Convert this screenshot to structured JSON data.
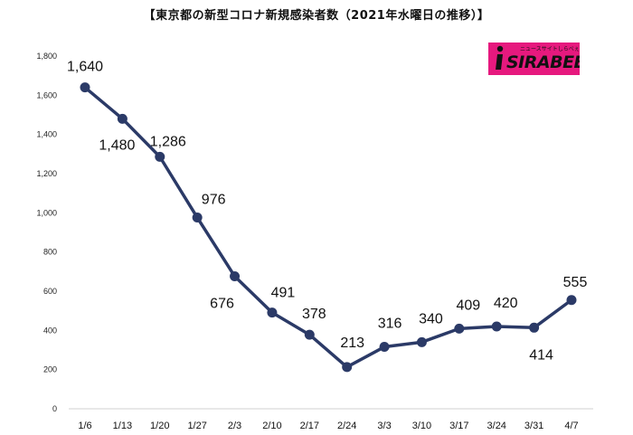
{
  "title": "【東京都の新型コロナ新規感染者数（2021年水曜日の推移）】",
  "logo": {
    "text": "SIRABEE",
    "subtext": "ニュースサイトしらべぇ"
  },
  "colors": {
    "line": "#2b3a67",
    "marker": "#2b3a67",
    "grid": "#e2e2e2",
    "logo_bg": "#e6197e"
  },
  "chart_data": {
    "type": "line",
    "title": "【東京都の新型コロナ新規感染者数（2021年水曜日の推移）】",
    "xlabel": "",
    "ylabel": "",
    "categories": [
      "1/6",
      "1/13",
      "1/20",
      "1/27",
      "2/3",
      "2/10",
      "2/17",
      "2/24",
      "3/3",
      "3/10",
      "3/17",
      "3/24",
      "3/31",
      "4/7"
    ],
    "series": [
      {
        "values": [
          1640,
          1480,
          1286,
          976,
          676,
          491,
          378,
          213,
          316,
          340,
          409,
          420,
          414,
          555
        ]
      }
    ],
    "data_labels": [
      "1,640",
      "1,480",
      "1,286",
      "976",
      "676",
      "491",
      "378",
      "213",
      "316",
      "340",
      "409",
      "420",
      "414",
      "555"
    ],
    "ylim": [
      0,
      1800
    ],
    "yticks": [
      0,
      200,
      400,
      600,
      800,
      1000,
      1200,
      1400,
      1600,
      1800
    ],
    "ytick_labels": [
      "0",
      "200",
      "400",
      "600",
      "800",
      "1,000",
      "1,200",
      "1,400",
      "1,600",
      "1,800"
    ],
    "grid": false,
    "legend": "none"
  }
}
